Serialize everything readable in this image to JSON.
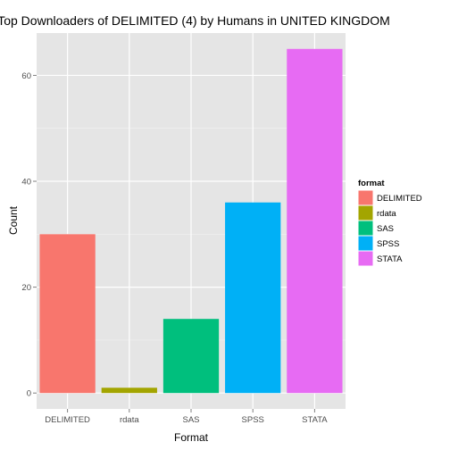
{
  "chart_data": {
    "type": "bar",
    "title": "Top Downloaders of DELIMITED (4) by Humans in UNITED KINGDOM",
    "xlabel": "Format",
    "ylabel": "Count",
    "categories": [
      "DELIMITED",
      "rdata",
      "SAS",
      "SPSS",
      "STATA"
    ],
    "values": [
      30,
      1,
      14,
      36,
      65
    ],
    "colors": [
      "#F8766D",
      "#A3A500",
      "#00BF7D",
      "#00B0F6",
      "#E76BF3"
    ],
    "ylim": [
      -3,
      68
    ],
    "yticks": [
      0,
      20,
      40,
      60
    ],
    "grid": true,
    "legend": {
      "title": "format",
      "placement": "right",
      "items": [
        "DELIMITED",
        "rdata",
        "SAS",
        "SPSS",
        "STATA"
      ]
    }
  }
}
